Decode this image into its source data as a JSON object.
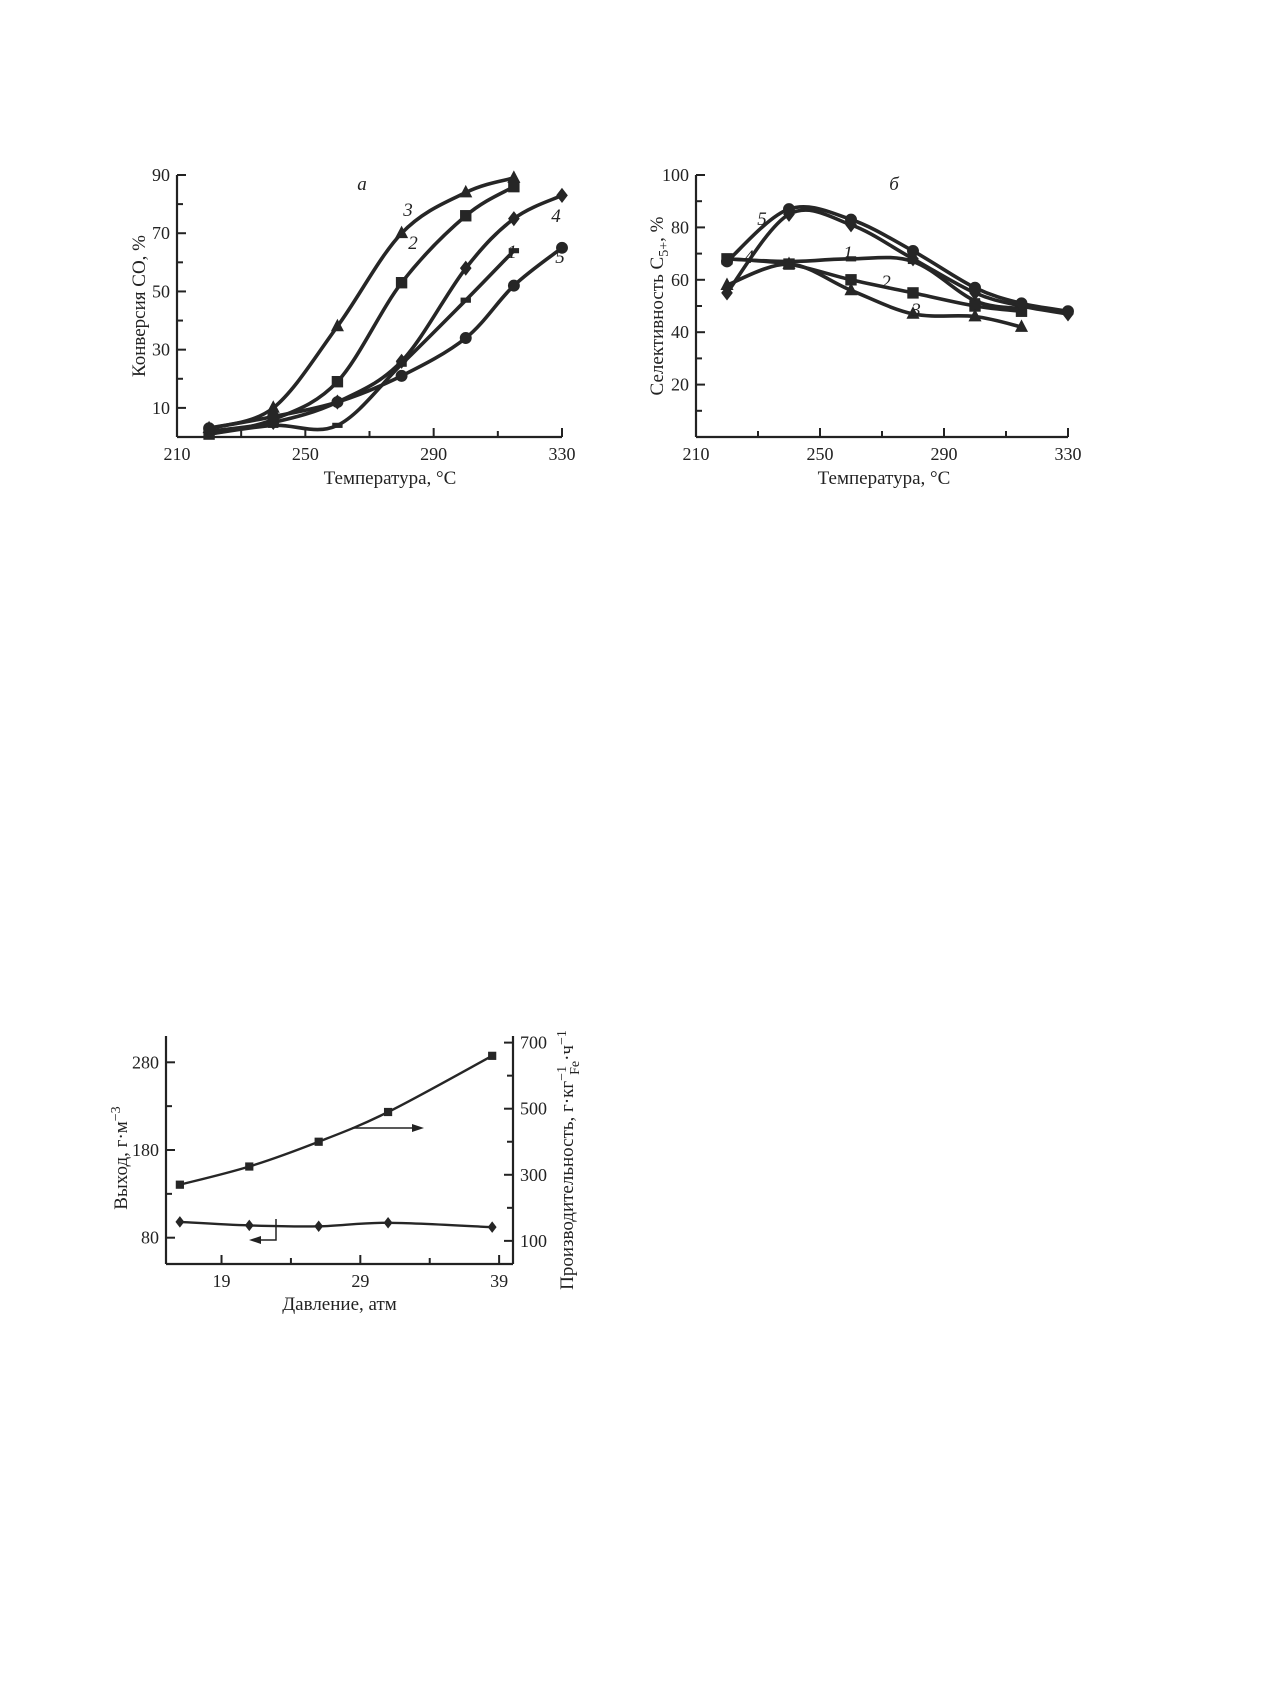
{
  "chart_data": [
    {
      "type": "line",
      "panel_label": "а",
      "xlabel": "Температура, °C",
      "ylabel": "Конверсия CO, %",
      "xlim": [
        210,
        330
      ],
      "ylim": [
        0,
        90
      ],
      "xticks": [
        210,
        250,
        290,
        330
      ],
      "yticks": [
        10,
        30,
        50,
        70,
        90
      ],
      "grid": false,
      "series": [
        {
          "name": "1",
          "marker": "dash",
          "x": [
            220,
            240,
            260,
            280,
            300,
            315
          ],
          "y": [
            1,
            4,
            4,
            25,
            47,
            64
          ]
        },
        {
          "name": "2",
          "marker": "square",
          "x": [
            220,
            240,
            260,
            280,
            300,
            315
          ],
          "y": [
            1,
            6,
            19,
            53,
            76,
            86
          ]
        },
        {
          "name": "3",
          "marker": "triangle",
          "x": [
            220,
            240,
            260,
            280,
            300,
            315
          ],
          "y": [
            3,
            10,
            38,
            70,
            84,
            89
          ]
        },
        {
          "name": "4",
          "marker": "diamond",
          "x": [
            220,
            240,
            260,
            280,
            300,
            315,
            330
          ],
          "y": [
            2,
            5,
            12,
            26,
            58,
            75,
            83
          ]
        },
        {
          "name": "5",
          "marker": "circle",
          "x": [
            220,
            240,
            260,
            280,
            300,
            315,
            330
          ],
          "y": [
            3,
            7,
            12,
            21,
            34,
            52,
            65
          ]
        }
      ]
    },
    {
      "type": "line",
      "panel_label": "б",
      "xlabel": "Температура, °C",
      "ylabel": "Селективность C5+, %",
      "ylabel_parts": [
        "Селективность C",
        "5+",
        ", %"
      ],
      "xlim": [
        210,
        330
      ],
      "ylim": [
        0,
        100
      ],
      "xticks": [
        210,
        250,
        290,
        330
      ],
      "yticks": [
        20,
        40,
        60,
        80,
        100
      ],
      "grid": false,
      "series": [
        {
          "name": "1",
          "marker": "dash",
          "x": [
            220,
            240,
            260,
            280,
            300,
            315
          ],
          "y": [
            68,
            67,
            68,
            67,
            52,
            49
          ]
        },
        {
          "name": "2",
          "marker": "square",
          "x": [
            220,
            240,
            260,
            280,
            300,
            315
          ],
          "y": [
            68,
            66,
            60,
            55,
            50,
            48
          ]
        },
        {
          "name": "3",
          "marker": "triangle",
          "x": [
            220,
            240,
            260,
            280,
            300,
            315
          ],
          "y": [
            58,
            66,
            56,
            47,
            46,
            42
          ]
        },
        {
          "name": "4",
          "marker": "diamond",
          "x": [
            220,
            240,
            260,
            280,
            300,
            315,
            330
          ],
          "y": [
            55,
            85,
            81,
            68,
            55,
            50,
            47
          ]
        },
        {
          "name": "5",
          "marker": "circle",
          "x": [
            220,
            240,
            260,
            280,
            300,
            315,
            330
          ],
          "y": [
            67,
            87,
            83,
            71,
            57,
            51,
            48
          ]
        }
      ]
    },
    {
      "type": "line",
      "xlabel": "Давление, атм",
      "ylabel_left": "Выход, г·м⁻³",
      "ylabel_right": "Производительность, г·кг⁻¹Fe·ч⁻¹",
      "ylabel_left_parts": [
        "Выход, г·м",
        "−3"
      ],
      "ylabel_right_parts": [
        "Производительность, г·кг",
        "−1",
        "Fe",
        "·ч",
        "−1"
      ],
      "xlim": [
        15,
        40
      ],
      "ylim_left": [
        50,
        310
      ],
      "ylim_right": [
        30,
        720
      ],
      "xticks": [
        19,
        29,
        39
      ],
      "yticks_left": [
        80,
        180,
        280
      ],
      "yticks_right": [
        100,
        300,
        500,
        700
      ],
      "grid": false,
      "series": [
        {
          "name": "Производительность",
          "axis": "right",
          "marker": "square",
          "x": [
            16,
            21,
            26,
            31,
            38.5
          ],
          "y": [
            270,
            325,
            400,
            490,
            660
          ]
        },
        {
          "name": "Выход",
          "axis": "left",
          "marker": "diamond",
          "x": [
            16,
            21,
            26,
            31,
            38.5
          ],
          "y": [
            98,
            94,
            93,
            97,
            92
          ]
        }
      ]
    }
  ]
}
